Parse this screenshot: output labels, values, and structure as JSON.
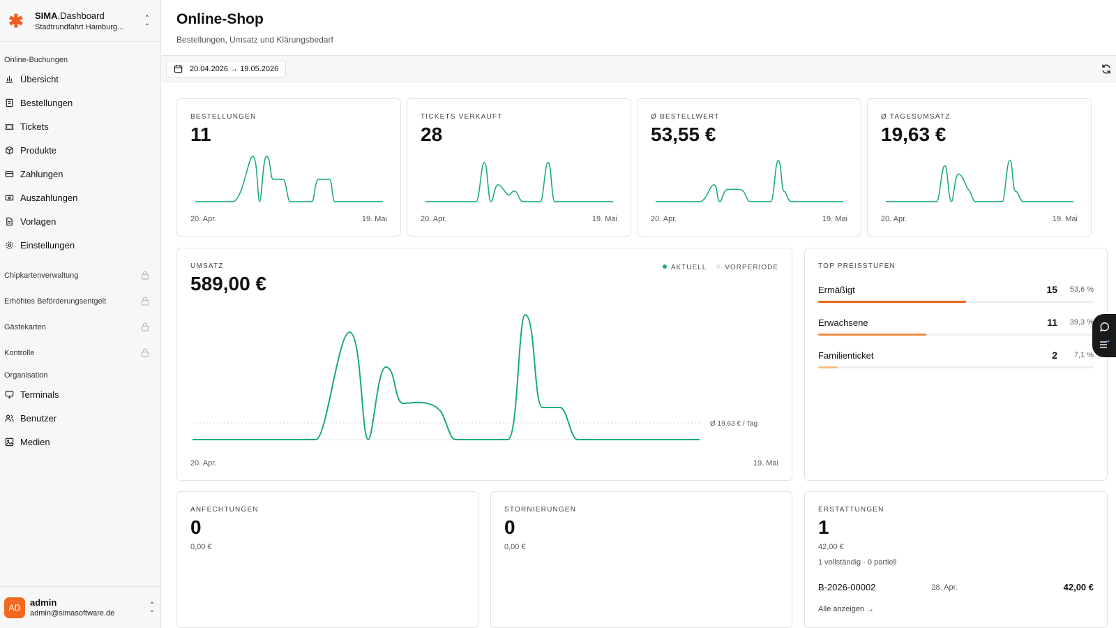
{
  "brand": {
    "name_bold": "SIMA",
    "name_rest": ".Dashboard",
    "org": "Stadtrundfahrt Hamburg..."
  },
  "sidebar": {
    "section1": "Online-Buchungen",
    "items": [
      {
        "label": "Übersicht",
        "icon": "bar-chart-icon"
      },
      {
        "label": "Bestellungen",
        "icon": "receipt-icon"
      },
      {
        "label": "Tickets",
        "icon": "ticket-icon"
      },
      {
        "label": "Produkte",
        "icon": "package-icon"
      },
      {
        "label": "Zahlungen",
        "icon": "credit-card-icon"
      },
      {
        "label": "Auszahlungen",
        "icon": "banknote-icon"
      },
      {
        "label": "Vorlagen",
        "icon": "file-icon"
      },
      {
        "label": "Einstellungen",
        "icon": "gear-icon"
      }
    ],
    "locked": [
      "Chipkartenverwaltung",
      "Erhöhtes Beförderungsentgelt",
      "Gästekarten",
      "Kontrolle"
    ],
    "section2": "Organisation",
    "org_items": [
      {
        "label": "Terminals",
        "icon": "monitor-icon"
      },
      {
        "label": "Benutzer",
        "icon": "users-icon"
      },
      {
        "label": "Medien",
        "icon": "image-icon"
      }
    ]
  },
  "user": {
    "initials": "AD",
    "name": "admin",
    "email": "admin@simasoftware.de"
  },
  "header": {
    "title": "Online-Shop",
    "subtitle": "Bestellungen, Umsatz und Klärungsbedarf"
  },
  "toolbar": {
    "date_range": "20.04.2026 → 19.05.2026"
  },
  "kpis": [
    {
      "label": "BESTELLUNGEN",
      "value": "11",
      "start": "20. Apr.",
      "end": "19. Mai"
    },
    {
      "label": "TICKETS VERKAUFT",
      "value": "28",
      "start": "20. Apr.",
      "end": "19. Mai"
    },
    {
      "label": "Ø BESTELLWERT",
      "value": "53,55 €",
      "start": "20. Apr.",
      "end": "19. Mai"
    },
    {
      "label": "Ø TAGESUMSATZ",
      "value": "19,63 €",
      "start": "20. Apr.",
      "end": "19. Mai"
    }
  ],
  "revenue": {
    "label": "UMSATZ",
    "value": "589,00 €",
    "legend_current": "AKTUELL",
    "legend_previous": "VORPERIODE",
    "avg_label": "Ø 19,63 € / Tag",
    "start": "20. Apr.",
    "end": "19. Mai"
  },
  "tiers": {
    "label": "TOP PREISSTUFEN",
    "items": [
      {
        "name": "Ermäßigt",
        "count": "15",
        "pct": "53,6 %",
        "share": 0.536,
        "color": "#e8611a"
      },
      {
        "name": "Erwachsene",
        "count": "11",
        "pct": "39,3 %",
        "share": 0.393,
        "color": "#f08a3c"
      },
      {
        "name": "Familienticket",
        "count": "2",
        "pct": "7,1 %",
        "share": 0.071,
        "color": "#f8bf86"
      }
    ]
  },
  "disputes": {
    "label": "ANFECHTUNGEN",
    "value": "0",
    "amount": "0,00 €"
  },
  "cancellations": {
    "label": "STORNIERUNGEN",
    "value": "0",
    "amount": "0,00 €"
  },
  "refunds": {
    "label": "ERSTATTUNGEN",
    "value": "1",
    "amount": "42,00 €",
    "detail": "1 vollständig · 0 partiell",
    "row": {
      "id": "B-2026-00002",
      "date": "28. Apr.",
      "amount": "42,00 €"
    },
    "show_all": "Alle anzeigen →"
  },
  "colors": {
    "accent": "#1aaa78",
    "brand": "#f15a1f"
  }
}
